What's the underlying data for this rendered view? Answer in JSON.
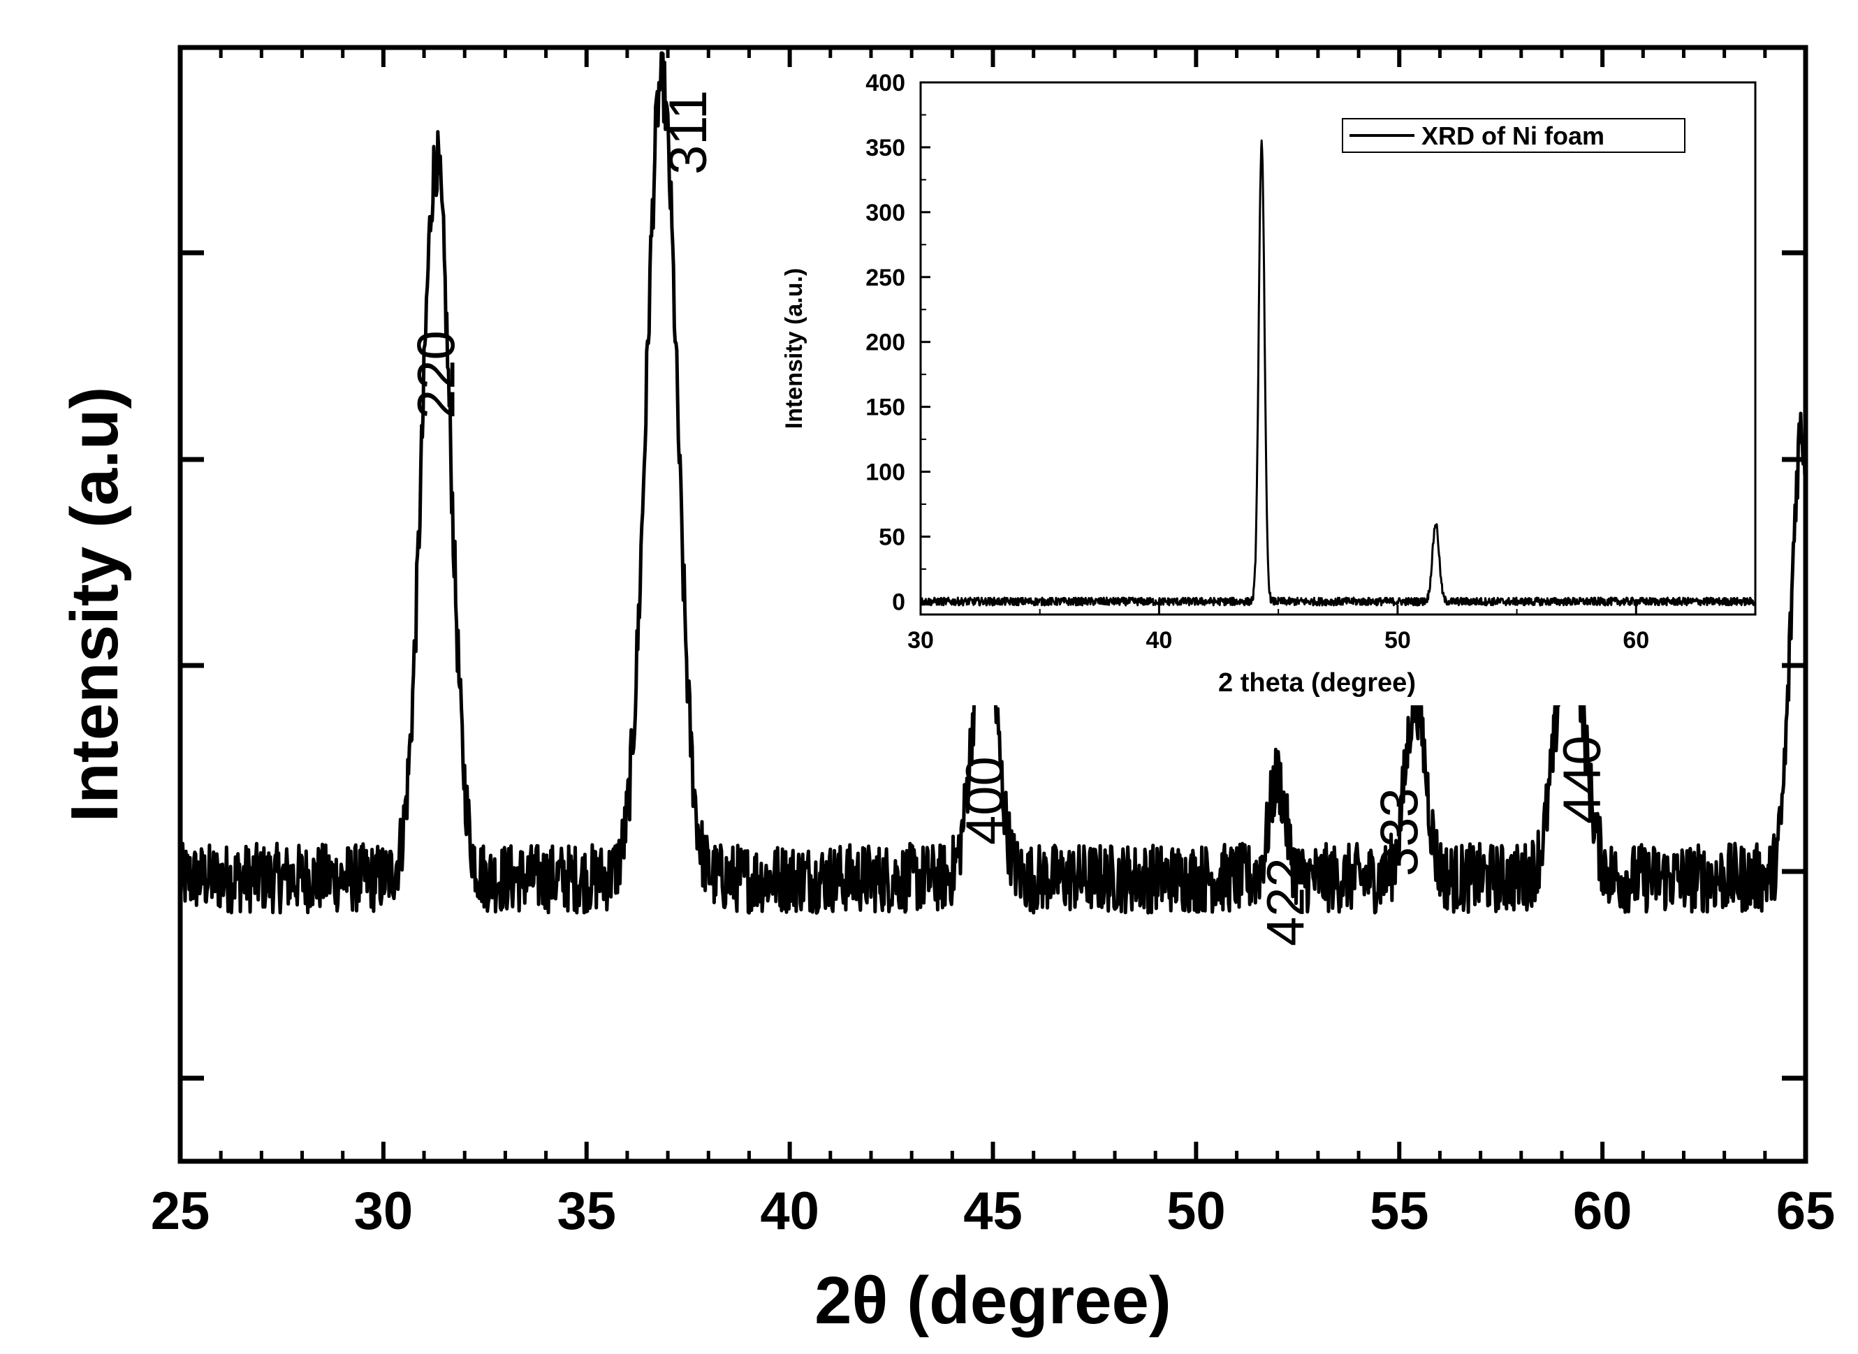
{
  "chart_data": [
    {
      "type": "line",
      "title": "",
      "xlabel": "2θ (degree)",
      "ylabel": "Intensity (a.u)",
      "xlim": [
        25,
        65
      ],
      "x_ticks": [
        "25",
        "30",
        "35",
        "40",
        "45",
        "50",
        "55",
        "60",
        "65"
      ],
      "y_tick_labels": "none",
      "grid": false,
      "legend": "none",
      "line_color": "#000000",
      "baseline_intensity": 0.2,
      "noise_amplitude": 0.035,
      "series": [
        {
          "peaks": [
            {
              "x": 31.3,
              "intensity": 0.92,
              "width": 0.35
            },
            {
              "x": 36.85,
              "intensity": 1.0,
              "width": 0.38
            },
            {
              "x": 44.8,
              "intensity": 0.46,
              "width": 0.3
            },
            {
              "x": 52.0,
              "intensity": 0.3,
              "width": 0.2
            },
            {
              "x": 55.4,
              "intensity": 0.38,
              "width": 0.25
            },
            {
              "x": 59.2,
              "intensity": 0.45,
              "width": 0.35
            },
            {
              "x": 64.9,
              "intensity": 0.65,
              "width": 0.25
            }
          ]
        }
      ],
      "annotations": [
        {
          "text": "220",
          "x": 31.3
        },
        {
          "text": "311",
          "x": 37.5
        },
        {
          "text": "400",
          "x": 44.8
        },
        {
          "text": "422",
          "x": 52.2
        },
        {
          "text": "333",
          "x": 55.0
        },
        {
          "text": "440",
          "x": 59.5
        }
      ]
    },
    {
      "type": "line",
      "title": "",
      "xlabel": "2 theta (degree)",
      "ylabel": "Intensity (a.u.)",
      "xlim": [
        30,
        65
      ],
      "ylim": [
        -10,
        400
      ],
      "x_ticks": [
        "30",
        "40",
        "50",
        "60"
      ],
      "y_ticks": [
        "0",
        "50",
        "100",
        "150",
        "200",
        "250",
        "300",
        "350",
        "400"
      ],
      "grid": false,
      "legend": "top-right",
      "line_color": "#000000",
      "baseline_intensity": 0,
      "noise_amplitude": 3,
      "series": [
        {
          "name": "XRD of Ni foam",
          "peaks": [
            {
              "x": 44.3,
              "intensity": 355,
              "width": 0.12
            },
            {
              "x": 51.6,
              "intensity": 60,
              "width": 0.14
            }
          ]
        }
      ]
    }
  ]
}
